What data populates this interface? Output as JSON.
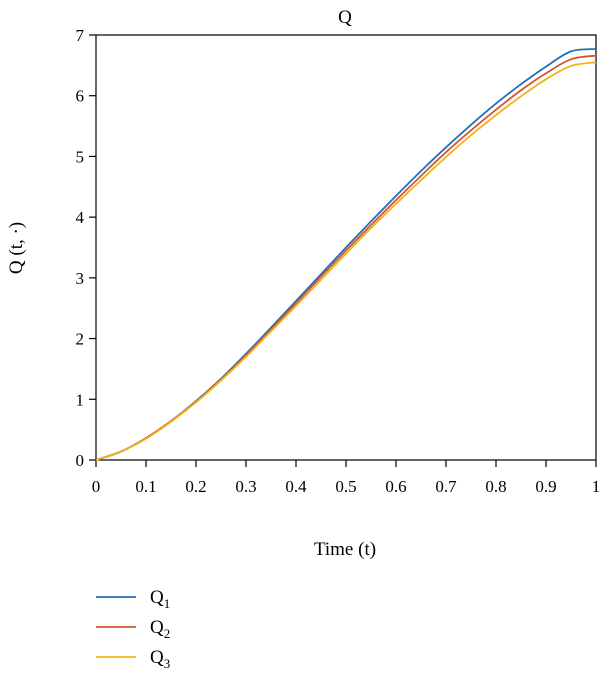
{
  "chart_data": {
    "type": "line",
    "title": "Q",
    "xlabel": "Time (t)",
    "ylabel": "Q (t, ·)",
    "xlim": [
      0,
      1
    ],
    "ylim": [
      0,
      7
    ],
    "xticks": [
      "0",
      "0.1",
      "0.2",
      "0.3",
      "0.4",
      "0.5",
      "0.6",
      "0.7",
      "0.8",
      "0.9",
      "1"
    ],
    "yticks": [
      "0",
      "1",
      "2",
      "3",
      "4",
      "5",
      "6",
      "7"
    ],
    "grid": false,
    "legend_position": "bottom-left",
    "x": [
      0,
      0.05,
      0.1,
      0.15,
      0.2,
      0.25,
      0.3,
      0.35,
      0.4,
      0.45,
      0.5,
      0.55,
      0.6,
      0.65,
      0.7,
      0.75,
      0.8,
      0.85,
      0.9,
      0.95,
      1.0
    ],
    "series": [
      {
        "name": "Q1",
        "label_main": "Q",
        "label_sub": "1",
        "color": "#1f6fba",
        "values": [
          0,
          0.14,
          0.36,
          0.64,
          0.97,
          1.34,
          1.75,
          2.18,
          2.62,
          3.06,
          3.5,
          3.93,
          4.35,
          4.76,
          5.15,
          5.52,
          5.87,
          6.19,
          6.48,
          6.73,
          6.77
        ]
      },
      {
        "name": "Q2",
        "label_main": "Q",
        "label_sub": "2",
        "color": "#d9542c",
        "values": [
          0,
          0.14,
          0.36,
          0.64,
          0.96,
          1.33,
          1.73,
          2.15,
          2.58,
          3.02,
          3.45,
          3.87,
          4.28,
          4.68,
          5.07,
          5.43,
          5.77,
          6.09,
          6.37,
          6.6,
          6.66
        ]
      },
      {
        "name": "Q3",
        "label_main": "Q",
        "label_sub": "3",
        "color": "#f0b21a",
        "values": [
          0,
          0.14,
          0.35,
          0.63,
          0.95,
          1.31,
          1.7,
          2.12,
          2.54,
          2.97,
          3.4,
          3.82,
          4.22,
          4.61,
          4.99,
          5.35,
          5.68,
          5.99,
          6.27,
          6.49,
          6.55
        ]
      }
    ]
  }
}
